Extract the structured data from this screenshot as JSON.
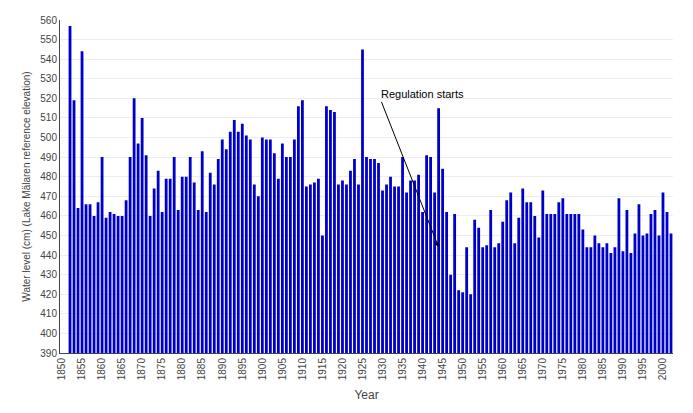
{
  "chart_data": {
    "type": "bar",
    "xlabel": "Year",
    "ylabel": "Water level (cm) (Lake Mälaren reference elevation)",
    "x": [
      1852,
      1853,
      1854,
      1855,
      1856,
      1857,
      1858,
      1859,
      1860,
      1861,
      1862,
      1863,
      1864,
      1865,
      1866,
      1867,
      1868,
      1869,
      1870,
      1871,
      1872,
      1873,
      1874,
      1875,
      1876,
      1877,
      1878,
      1879,
      1880,
      1881,
      1882,
      1883,
      1884,
      1885,
      1886,
      1887,
      1888,
      1889,
      1890,
      1891,
      1892,
      1893,
      1894,
      1895,
      1896,
      1897,
      1898,
      1899,
      1900,
      1901,
      1902,
      1903,
      1904,
      1905,
      1906,
      1907,
      1908,
      1909,
      1910,
      1911,
      1912,
      1913,
      1914,
      1915,
      1916,
      1917,
      1918,
      1919,
      1920,
      1921,
      1922,
      1923,
      1924,
      1925,
      1926,
      1927,
      1928,
      1929,
      1930,
      1931,
      1932,
      1933,
      1934,
      1935,
      1936,
      1937,
      1938,
      1939,
      1940,
      1941,
      1942,
      1943,
      1944,
      1945,
      1946,
      1947,
      1948,
      1949,
      1950,
      1951,
      1952,
      1953,
      1954,
      1955,
      1956,
      1957,
      1958,
      1959,
      1960,
      1961,
      1962,
      1963,
      1964,
      1965,
      1966,
      1967,
      1968,
      1969,
      1970,
      1971,
      1972,
      1973,
      1974,
      1975,
      1976,
      1977,
      1978,
      1979,
      1980,
      1981,
      1982,
      1983,
      1984,
      1985,
      1986,
      1987,
      1988,
      1989,
      1990,
      1991,
      1992,
      1993,
      1994,
      1995,
      1996,
      1997,
      1998,
      1999,
      2000,
      2001,
      2002
    ],
    "values": [
      557,
      519,
      464,
      544,
      466,
      466,
      460,
      467,
      490,
      459,
      462,
      461,
      460,
      460,
      468,
      490,
      520,
      497,
      510,
      491,
      460,
      474,
      483,
      462,
      479,
      479,
      490,
      463,
      480,
      480,
      490,
      477,
      463,
      493,
      462,
      482,
      476,
      489,
      499,
      494,
      503,
      509,
      503,
      507,
      501,
      499,
      476,
      470,
      500,
      499,
      499,
      492,
      479,
      497,
      490,
      490,
      499,
      516,
      519,
      475,
      476,
      477,
      479,
      450,
      516,
      514,
      513,
      476,
      478,
      476,
      483,
      489,
      476,
      545,
      490,
      489,
      489,
      487,
      473,
      476,
      480,
      475,
      475,
      490,
      472,
      478,
      478,
      481,
      462,
      491,
      490,
      472,
      515,
      484,
      462,
      430,
      461,
      422,
      421,
      444,
      420,
      458,
      454,
      444,
      445,
      463,
      444,
      446,
      457,
      468,
      472,
      446,
      459,
      474,
      467,
      467,
      460,
      449,
      473,
      461,
      461,
      461,
      467,
      469,
      461,
      461,
      461,
      461,
      453,
      444,
      444,
      450,
      446,
      444,
      446,
      441,
      444,
      469,
      442,
      463,
      441,
      451,
      466,
      450,
      451,
      461,
      463,
      450,
      472,
      462,
      451
    ],
    "color": "#0000cc",
    "xlim": [
      1849.5,
      2002.5
    ],
    "xticks": [
      1850,
      1855,
      1860,
      1865,
      1870,
      1875,
      1880,
      1885,
      1890,
      1895,
      1900,
      1905,
      1910,
      1915,
      1920,
      1925,
      1930,
      1935,
      1940,
      1945,
      1950,
      1955,
      1960,
      1965,
      1970,
      1975,
      1980,
      1985,
      1990,
      1995,
      2000
    ],
    "ylim": [
      390,
      560
    ],
    "yticks": [
      390,
      400,
      410,
      420,
      430,
      440,
      450,
      460,
      470,
      480,
      490,
      500,
      510,
      520,
      530,
      540,
      550,
      560
    ],
    "grid": "y",
    "annotations": [
      {
        "text": "Regulation starts",
        "x": 1944,
        "y": 444,
        "text_x": 1929,
        "text_y": 522
      }
    ]
  }
}
